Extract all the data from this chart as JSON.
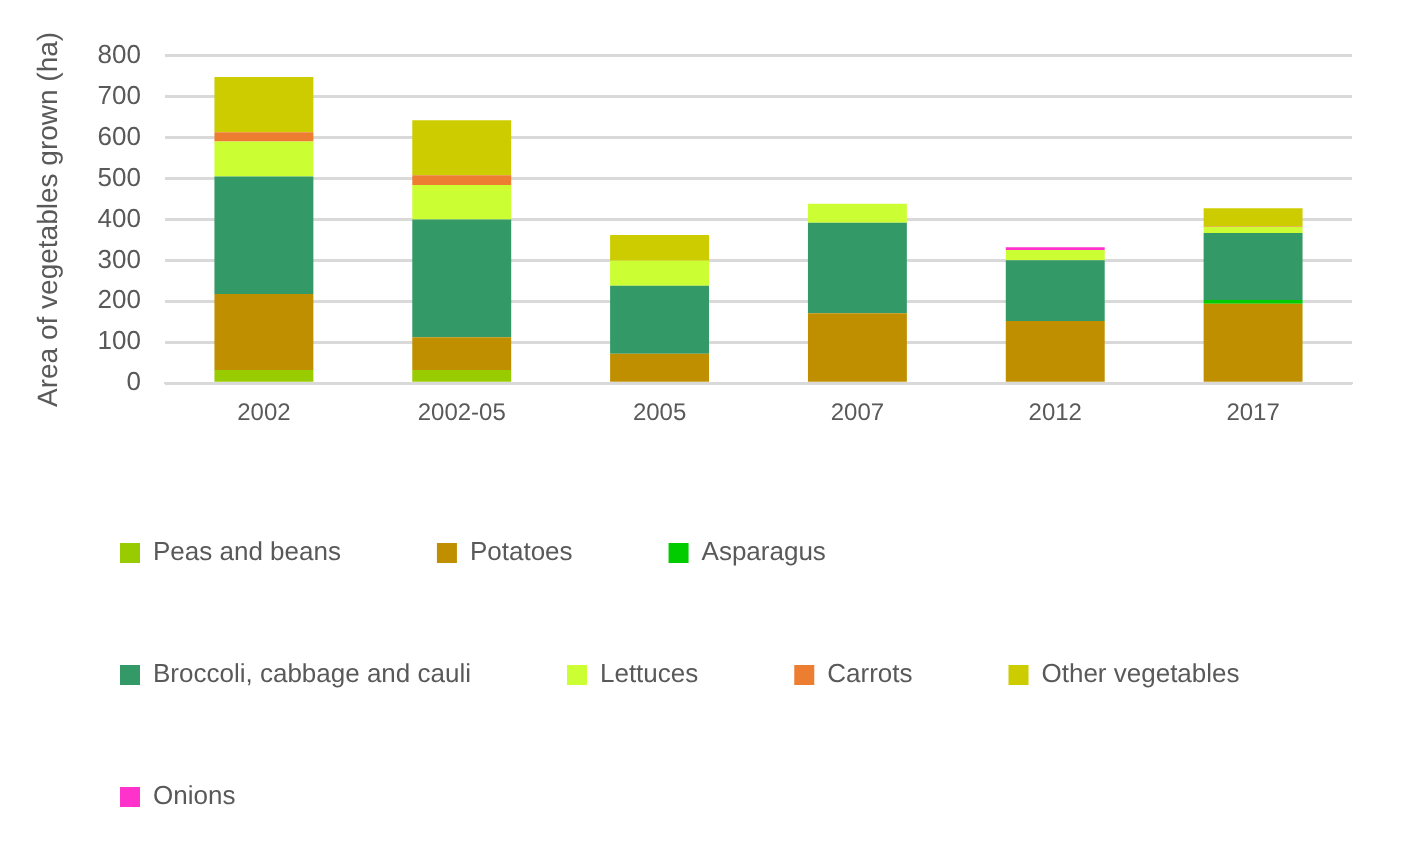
{
  "chart_data": {
    "type": "bar",
    "stacked": true,
    "ylabel": "Area of vegetables grown (ha)",
    "categories": [
      "2002",
      "2002-05",
      "2005",
      "2007",
      "2012",
      "2017"
    ],
    "ylim": [
      0,
      800
    ],
    "yticks": [
      0,
      100,
      200,
      300,
      400,
      500,
      600,
      700,
      800
    ],
    "grid": "y",
    "legend": "bottom",
    "series": [
      {
        "name": "Peas and beans",
        "color": "#99cc00",
        "values": [
          32,
          32,
          null,
          null,
          null,
          null
        ]
      },
      {
        "name": "Potatoes",
        "color": "#bf8f00",
        "values": [
          186,
          80,
          72,
          171,
          152,
          194
        ]
      },
      {
        "name": "Asparagus",
        "color": "#00cc00",
        "values": [
          null,
          null,
          null,
          null,
          null,
          9
        ]
      },
      {
        "name": "Broccoli, cabbage and cauli",
        "color": "#339966",
        "values": [
          287,
          288,
          166,
          221,
          148,
          164
        ]
      },
      {
        "name": "Lettuces",
        "color": "#ccff33",
        "values": [
          85,
          84,
          61,
          46,
          25,
          15
        ]
      },
      {
        "name": "Carrots",
        "color": "#ed7d31",
        "values": [
          23,
          24,
          null,
          null,
          null,
          2
        ]
      },
      {
        "name": "Other vegetables",
        "color": "#cccc00",
        "values": [
          135,
          134,
          63,
          null,
          null,
          43
        ]
      },
      {
        "name": "Onions",
        "color": "#ff33cc",
        "values": [
          null,
          null,
          null,
          null,
          7,
          null
        ]
      }
    ]
  }
}
